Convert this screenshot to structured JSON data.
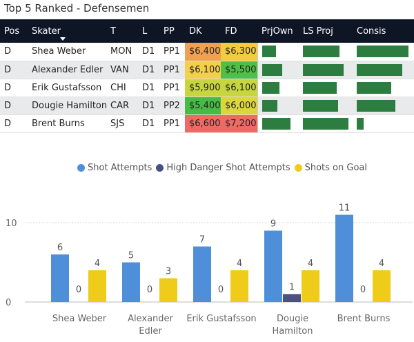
{
  "title": "Top 5 Ranked - Defensemen",
  "table": {
    "headers": [
      "Pos",
      "Skater",
      "T",
      "L",
      "PP",
      "DK",
      "FD",
      "PrjOwn",
      "LS Proj",
      "Consis"
    ],
    "rows": [
      {
        "pos": "D",
        "skater": "Shea Weber",
        "team": "MON",
        "line": "D1",
        "pp": "PP1",
        "dk": "$6,400",
        "fd": "$6,300",
        "dk_color": "#f0a050",
        "fd_color": "#f2cc3a",
        "prjown": 0.38,
        "lsproj": 0.74,
        "consis": 0.9
      },
      {
        "pos": "D",
        "skater": "Alexander Edler",
        "team": "VAN",
        "line": "D1",
        "pp": "PP1",
        "dk": "$6,100",
        "fd": "$5,500",
        "dk_color": "#f3cf4a",
        "fd_color": "#4fc043",
        "prjown": 0.55,
        "lsproj": 0.82,
        "consis": 0.8
      },
      {
        "pos": "D",
        "skater": "Erik Gustafsson",
        "team": "CHI",
        "line": "D1",
        "pp": "PP1",
        "dk": "$5,900",
        "fd": "$6,100",
        "dk_color": "#c7d53e",
        "fd_color": "#c7d53e",
        "prjown": 0.48,
        "lsproj": 0.68,
        "consis": 0.6
      },
      {
        "pos": "D",
        "skater": "Dougie Hamilton",
        "team": "CAR",
        "line": "D1",
        "pp": "PP2",
        "dk": "$5,400",
        "fd": "$6,000",
        "dk_color": "#48bb45",
        "fd_color": "#dcd63e",
        "prjown": 0.42,
        "lsproj": 0.71,
        "consis": 0.68
      },
      {
        "pos": "D",
        "skater": "Brent Burns",
        "team": "SJS",
        "line": "D1",
        "pp": "PP1",
        "dk": "$6,600",
        "fd": "$7,200",
        "dk_color": "#ee6a64",
        "fd_color": "#ee6a64",
        "prjown": 0.78,
        "lsproj": 0.91,
        "consis": 0.12
      }
    ]
  },
  "colors": {
    "shot_attempts": "#4f8ed8",
    "high_danger": "#4a5080",
    "shots_on_goal": "#efcb1a",
    "header_bg": "#0e1626",
    "databar": "#2e7d40"
  },
  "chart_data": {
    "type": "bar",
    "categories": [
      "Shea Weber",
      "Alexander Edler",
      "Erik Gustafsson",
      "Dougie Hamilton",
      "Brent Burns"
    ],
    "category_lines": [
      [
        "Shea Weber"
      ],
      [
        "Alexander",
        "Edler"
      ],
      [
        "Erik Gustafsson"
      ],
      [
        "Dougie",
        "Hamilton"
      ],
      [
        "Brent Burns"
      ]
    ],
    "series": [
      {
        "name": "Shot Attempts",
        "values": [
          6,
          5,
          7,
          9,
          11
        ]
      },
      {
        "name": "High Danger Shot Attempts",
        "values": [
          0,
          0,
          0,
          1,
          0
        ]
      },
      {
        "name": "Shots on Goal",
        "values": [
          4,
          3,
          4,
          4,
          4
        ]
      }
    ],
    "yticks": [
      0,
      10
    ],
    "ylim": [
      0,
      12
    ],
    "grid": true,
    "legend_position": "top"
  }
}
